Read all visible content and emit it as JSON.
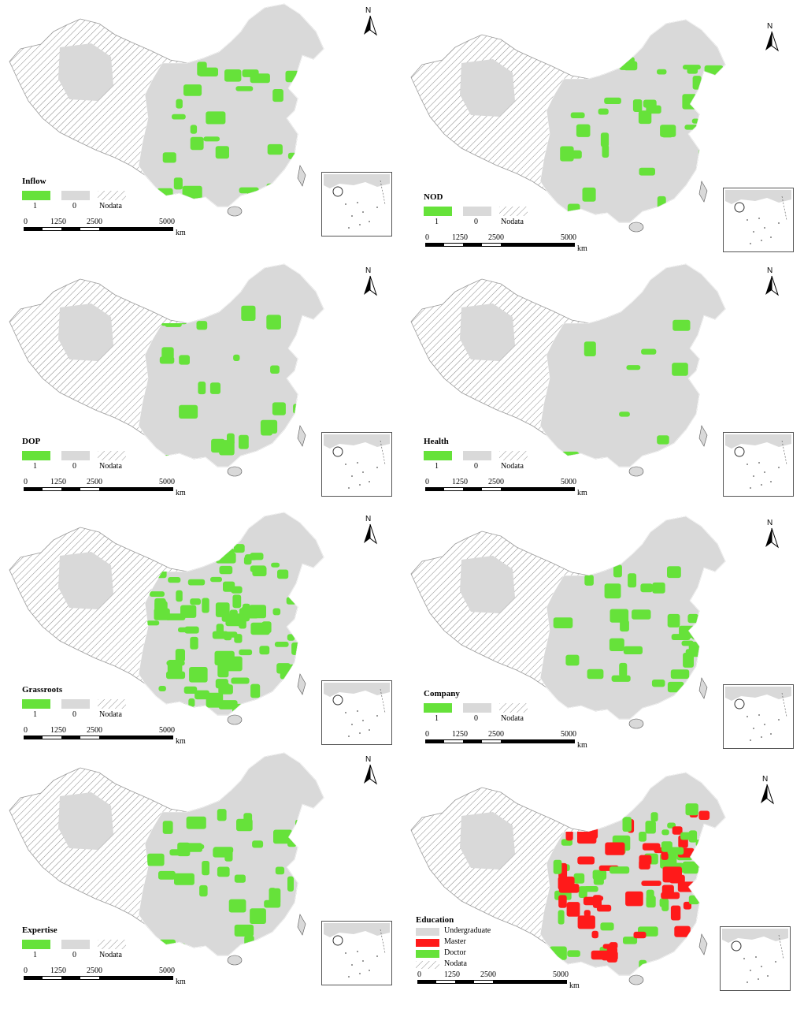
{
  "colors": {
    "presence": "#66e23a",
    "absence": "#d9d9d9",
    "master": "#ff1a1a",
    "nodata_hatch": "#8a8a8a"
  },
  "common": {
    "north_label": "N",
    "legend_one": "1",
    "legend_zero": "0",
    "legend_nodata": "Nodata",
    "scale_ticks": [
      "0",
      "1250",
      "2500",
      "5000"
    ],
    "scale_unit": "km"
  },
  "panels": [
    {
      "id": "inflow",
      "title": "Inflow",
      "green_share": 0.22
    },
    {
      "id": "nod",
      "title": "NOD",
      "green_share": 0.25
    },
    {
      "id": "dop",
      "title": "DOP",
      "green_share": 0.17
    },
    {
      "id": "health",
      "title": "Health",
      "green_share": 0.06
    },
    {
      "id": "grassroots",
      "title": "Grassroots",
      "green_share": 0.62
    },
    {
      "id": "company",
      "title": "Company",
      "green_share": 0.25
    },
    {
      "id": "expertise",
      "title": "Expertise",
      "green_share": 0.28
    }
  ],
  "education": {
    "title": "Education",
    "classes": [
      "Undergraduate",
      "Master",
      "Doctor",
      "Nodata"
    ]
  }
}
